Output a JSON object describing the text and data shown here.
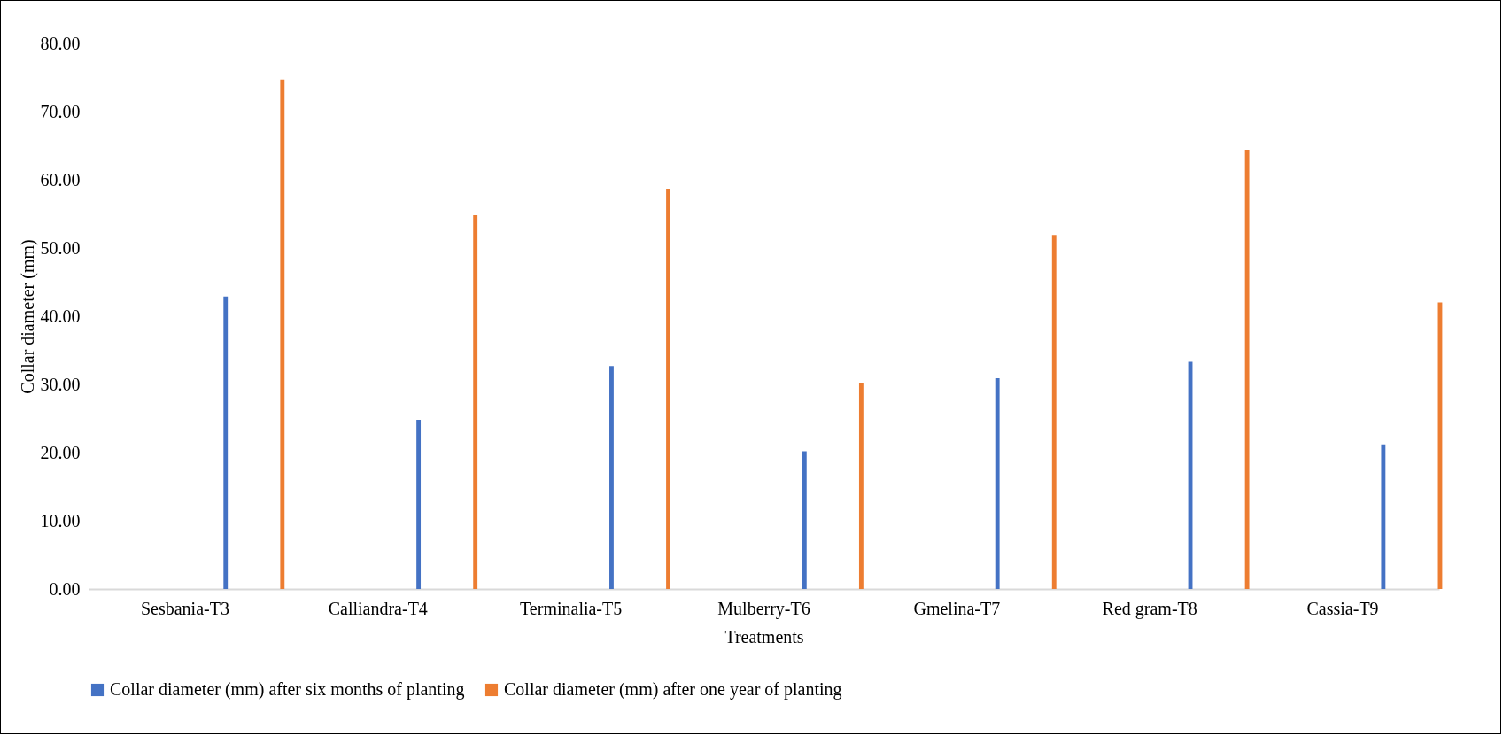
{
  "chart_data": {
    "type": "bar",
    "xlabel": "Treatments",
    "ylabel": "Collar diameter (mm)",
    "categories": [
      "Sesbania-T3",
      "Calliandra-T4",
      "Terminalia-T5",
      "Mulberry-T6",
      "Gmelina-T7",
      "Red gram-T8",
      "Cassia-T9"
    ],
    "series": [
      {
        "name": "Collar diameter (mm) after six months of planting",
        "color": "#4472c4",
        "values": [
          42.9,
          24.8,
          32.7,
          20.2,
          30.9,
          33.3,
          21.2
        ]
      },
      {
        "name": "Collar diameter (mm) after one year of planting",
        "color": "#ed7d31",
        "values": [
          74.7,
          54.8,
          58.7,
          30.2,
          51.9,
          64.4,
          42.0
        ]
      }
    ],
    "ylim": [
      0,
      80
    ],
    "yticks": [
      {
        "value": 0,
        "label": "0.00"
      },
      {
        "value": 10,
        "label": "10.00"
      },
      {
        "value": 20,
        "label": "20.00"
      },
      {
        "value": 30,
        "label": "30.00"
      },
      {
        "value": 40,
        "label": "40.00"
      },
      {
        "value": 50,
        "label": "50.00"
      },
      {
        "value": 60,
        "label": "60.00"
      },
      {
        "value": 70,
        "label": "70.00"
      },
      {
        "value": 80,
        "label": "80.00"
      }
    ],
    "grid": false,
    "legend": "bottom"
  }
}
